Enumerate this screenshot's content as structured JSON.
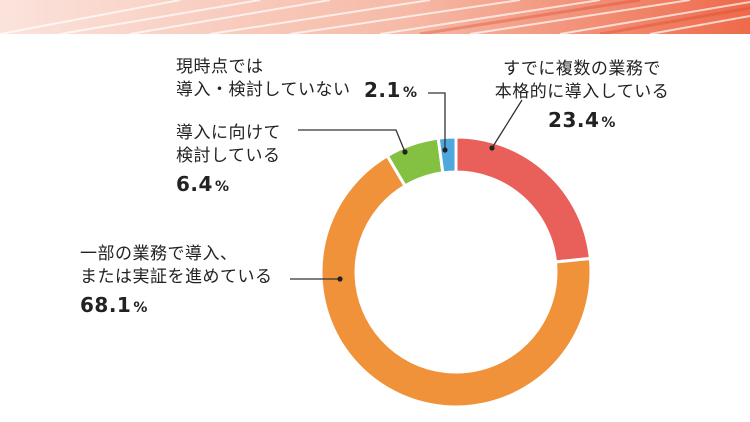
{
  "chart_data": {
    "type": "pie",
    "donut": true,
    "categories": [
      "すでに複数の業務で本格的に導入している",
      "一部の業務で導入、または実証を進めている",
      "導入に向けて検討している",
      "現時点では導入・検討していない"
    ],
    "values": [
      23.4,
      68.1,
      6.4,
      2.1
    ],
    "unit": "%",
    "colors": [
      "#e9605b",
      "#f0923a",
      "#84c142",
      "#4ea8de"
    ],
    "legend": "none"
  },
  "labels": {
    "seg0": {
      "line1": "すでに複数の業務で",
      "line2": "本格的に導入している",
      "value": "23.4",
      "unit": "%"
    },
    "seg1": {
      "line1": "一部の業務で導入、",
      "line2": "または実証を進めている",
      "value": "68.1",
      "unit": "%"
    },
    "seg2": {
      "line1": "導入に向けて",
      "line2": "検討している",
      "value": "6.4",
      "unit": "%"
    },
    "seg3": {
      "line1": "現時点では",
      "line2": "導入・検討していない",
      "value": "2.1",
      "unit": "%"
    }
  }
}
